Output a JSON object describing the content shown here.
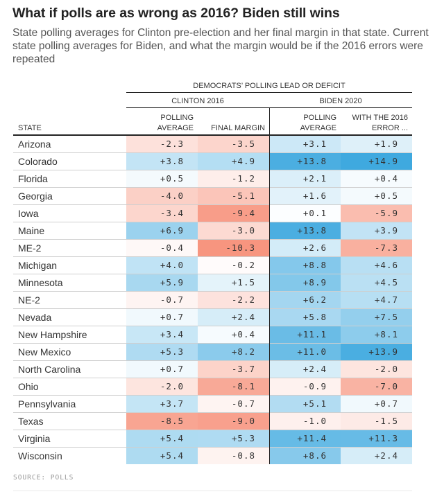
{
  "header": {
    "title": "What if polls are as wrong as 2016? Biden still wins",
    "subtitle": "State polling averages for Clinton pre-election and her final margin in that state. Current state polling averages for Biden, and what the margin would be if the 2016 errors were repeated"
  },
  "table": {
    "super_header": "DEMOCRATS’ POLLING LEAD OR DEFICIT",
    "group_headers": [
      "CLINTON 2016",
      "BIDEN 2020"
    ],
    "columns": {
      "state": "STATE",
      "c1_line1": "POLLING",
      "c1_line2": "AVERAGE",
      "c2": "FINAL MARGIN",
      "c3_line1": "POLLING",
      "c3_line2": "AVERAGE",
      "c4_line1": "WITH THE 2016",
      "c4_line2": "ERROR ..."
    }
  },
  "colors": {
    "positive_max": "#3fa9df",
    "negative_max": "#f7957f",
    "neutral": "#ffffff"
  },
  "source": "SOURCE: POLLS",
  "chart_data": {
    "type": "table",
    "title": "What if polls are as wrong as 2016? Biden still wins",
    "columns": [
      "State",
      "Clinton 2016 Polling Average",
      "Clinton 2016 Final Margin",
      "Biden 2020 Polling Average",
      "Biden 2020 With the 2016 Error"
    ],
    "rows": [
      {
        "state": "Arizona",
        "values": [
          -2.3,
          -3.5,
          3.1,
          1.9
        ]
      },
      {
        "state": "Colorado",
        "values": [
          3.8,
          4.9,
          13.8,
          14.9
        ]
      },
      {
        "state": "Florida",
        "values": [
          0.5,
          -1.2,
          2.1,
          0.4
        ]
      },
      {
        "state": "Georgia",
        "values": [
          -4.0,
          -5.1,
          1.6,
          0.5
        ]
      },
      {
        "state": "Iowa",
        "values": [
          -3.4,
          -9.4,
          0.1,
          -5.9
        ]
      },
      {
        "state": "Maine",
        "values": [
          6.9,
          -3.0,
          13.8,
          3.9
        ]
      },
      {
        "state": "ME-2",
        "values": [
          -0.4,
          -10.3,
          2.6,
          -7.3
        ]
      },
      {
        "state": "Michigan",
        "values": [
          4.0,
          -0.2,
          8.8,
          4.6
        ]
      },
      {
        "state": "Minnesota",
        "values": [
          5.9,
          1.5,
          8.9,
          4.5
        ]
      },
      {
        "state": "NE-2",
        "values": [
          -0.7,
          -2.2,
          6.2,
          4.7
        ]
      },
      {
        "state": "Nevada",
        "values": [
          0.7,
          2.4,
          5.8,
          7.5
        ]
      },
      {
        "state": "New Hampshire",
        "values": [
          3.4,
          0.4,
          11.1,
          8.1
        ]
      },
      {
        "state": "New Mexico",
        "values": [
          5.3,
          8.2,
          11.0,
          13.9
        ]
      },
      {
        "state": "North Carolina",
        "values": [
          0.7,
          -3.7,
          2.4,
          -2.0
        ]
      },
      {
        "state": "Ohio",
        "values": [
          -2.0,
          -8.1,
          -0.9,
          -7.0
        ]
      },
      {
        "state": "Pennsylvania",
        "values": [
          3.7,
          -0.7,
          5.1,
          0.7
        ]
      },
      {
        "state": "Texas",
        "values": [
          -8.5,
          -9.0,
          -1.0,
          -1.5
        ]
      },
      {
        "state": "Virginia",
        "values": [
          5.4,
          5.3,
          11.4,
          11.3
        ]
      },
      {
        "state": "Wisconsin",
        "values": [
          5.4,
          -0.8,
          8.6,
          2.4
        ]
      }
    ],
    "color_scale": {
      "negative_limit": -10.3,
      "positive_limit": 14.9
    }
  }
}
